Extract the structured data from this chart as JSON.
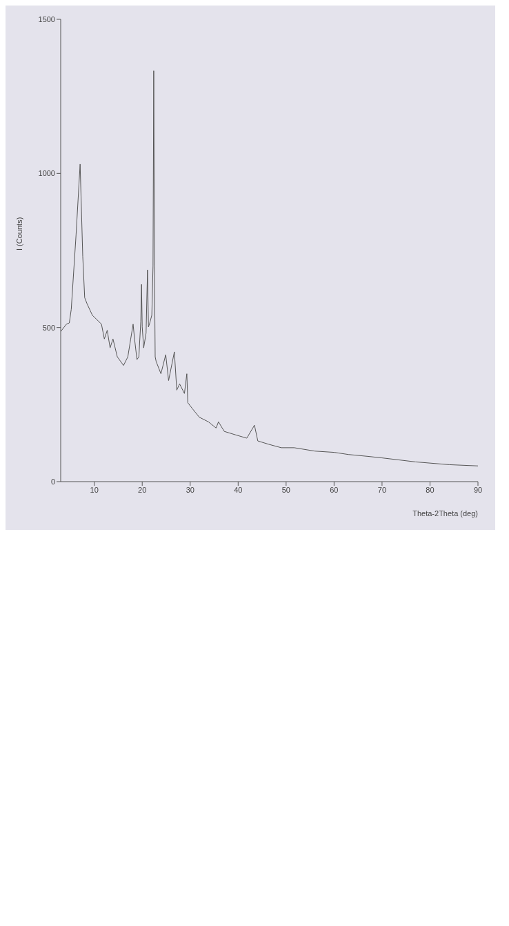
{
  "chart_data": {
    "type": "line",
    "xlabel": "Theta-2Theta (deg)",
    "ylabel": "I (Counts)",
    "x": [
      3.0,
      4.2,
      4.8,
      5.2,
      6.2,
      7.05,
      7.6,
      8.0,
      8.5,
      9.6,
      11.5,
      12.1,
      12.7,
      13.3,
      13.9,
      14.8,
      16.1,
      17.0,
      17.6,
      18.1,
      18.4,
      18.9,
      19.3,
      19.7,
      19.85,
      20.0,
      20.3,
      20.8,
      21.1,
      21.3,
      21.5,
      22.0,
      22.25,
      22.4,
      22.55,
      22.7,
      22.9,
      23.9,
      24.9,
      25.5,
      26.7,
      27.2,
      27.8,
      28.8,
      29.3,
      29.5,
      30.5,
      31.9,
      33.8,
      35.4,
      35.9,
      37.1,
      39.4,
      41.8,
      43.4,
      44.1,
      46.4,
      49.0,
      51.7,
      56,
      60,
      63,
      67,
      70,
      77,
      84,
      90
    ],
    "series": [
      {
        "color": "#555555",
        "values": [
          487,
          511,
          515,
          559,
          800,
          1030,
          731,
          597,
          577,
          540,
          511,
          463,
          491,
          434,
          463,
          405,
          377,
          405,
          463,
          511,
          463,
          396,
          405,
          520,
          640,
          502,
          434,
          482,
          687,
          502,
          511,
          540,
          700,
          1333,
          700,
          405,
          390,
          350,
          412,
          328,
          421,
          297,
          317,
          286,
          350,
          256,
          236,
          209,
          194,
          174,
          194,
          163,
          152,
          141,
          183,
          132,
          121,
          110,
          110,
          99,
          95,
          88,
          82,
          77,
          64,
          55,
          51
        ]
      }
    ],
    "xlim": [
      3,
      90
    ],
    "xticks": [
      10,
      20,
      30,
      40,
      50,
      60,
      70,
      80,
      90
    ],
    "ylim": [
      0,
      1500
    ],
    "yticks": [
      0,
      500,
      1000,
      1500
    ],
    "marker": "none",
    "line_style": "solid"
  }
}
